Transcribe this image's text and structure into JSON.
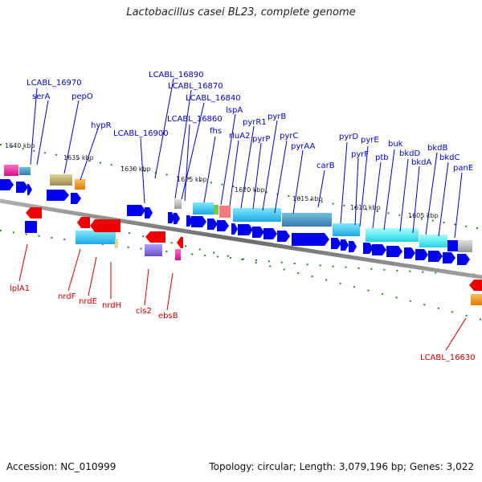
{
  "header": {
    "title": "Lactobacillus casei BL23, complete genome"
  },
  "footer": {
    "accession": "Accession: NC_010999",
    "summary": "Topology: circular; Length: 3,079,196 bp; Genes: 3,022"
  },
  "colors": {
    "forward_label": "#0000cc",
    "reverse_label": "#cc0000",
    "forward_arrow": "#0000ee",
    "reverse_arrow": "#ee0000",
    "backbone": "#808080",
    "tick": "#2e7d2e"
  },
  "ticks": [
    "1640 kbp",
    "1635 kbp",
    "1630 kbp",
    "1625 kbp",
    "1620 kbp",
    "1615 kbp",
    "1610 kbp",
    "1605 kbp"
  ],
  "forward_genes": [
    "LCABL_16970",
    "serA",
    "pepO",
    "hypR",
    "LCABL_16900",
    "LCABL_16890",
    "LCABL_16870",
    "LCABL_16840",
    "LCABL_16860",
    "fhs",
    "lspA",
    "rluA2",
    "pyrR1",
    "pyrP",
    "pyrB",
    "pyrC",
    "pyrAA",
    "carB",
    "pyrD",
    "pyrF",
    "pyrE",
    "ptb",
    "buk",
    "bkdD",
    "bkdA",
    "bkdB",
    "bkdC",
    "panE"
  ],
  "reverse_genes": [
    "lplA1",
    "nrdF",
    "nrdE",
    "nrdH",
    "cls2",
    "ebsB",
    "LCABL_16630"
  ]
}
